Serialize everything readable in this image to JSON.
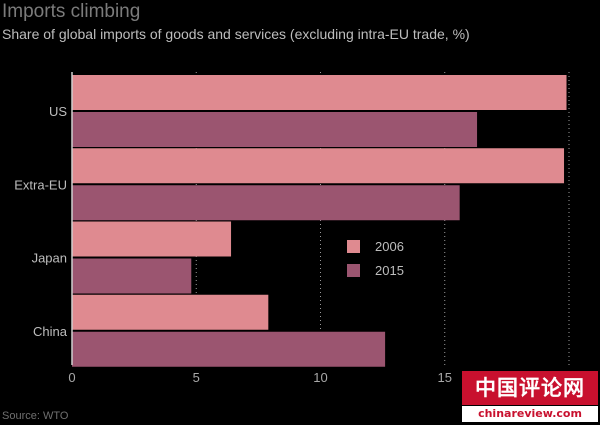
{
  "chart_data": {
    "type": "bar",
    "orientation": "horizontal",
    "title": "Imports climbing",
    "subtitle": "Share of global imports of goods and services (excluding intra-EU trade, %)",
    "categories": [
      "US",
      "Extra-EU",
      "Japan",
      "China"
    ],
    "series": [
      {
        "name": "2006",
        "color": "#df8a90",
        "values": [
          19.9,
          19.8,
          6.4,
          7.9
        ]
      },
      {
        "name": "2015",
        "color": "#9b5570",
        "values": [
          16.3,
          15.6,
          4.8,
          12.6
        ]
      }
    ],
    "xlim": [
      0,
      20
    ],
    "xticks": [
      0,
      5,
      10,
      15
    ],
    "grid": true,
    "legend": {
      "placement": "center-right"
    },
    "source": "Source: WTO"
  },
  "watermark": {
    "chinese": "中国评论网",
    "url": "chinareview.com"
  }
}
